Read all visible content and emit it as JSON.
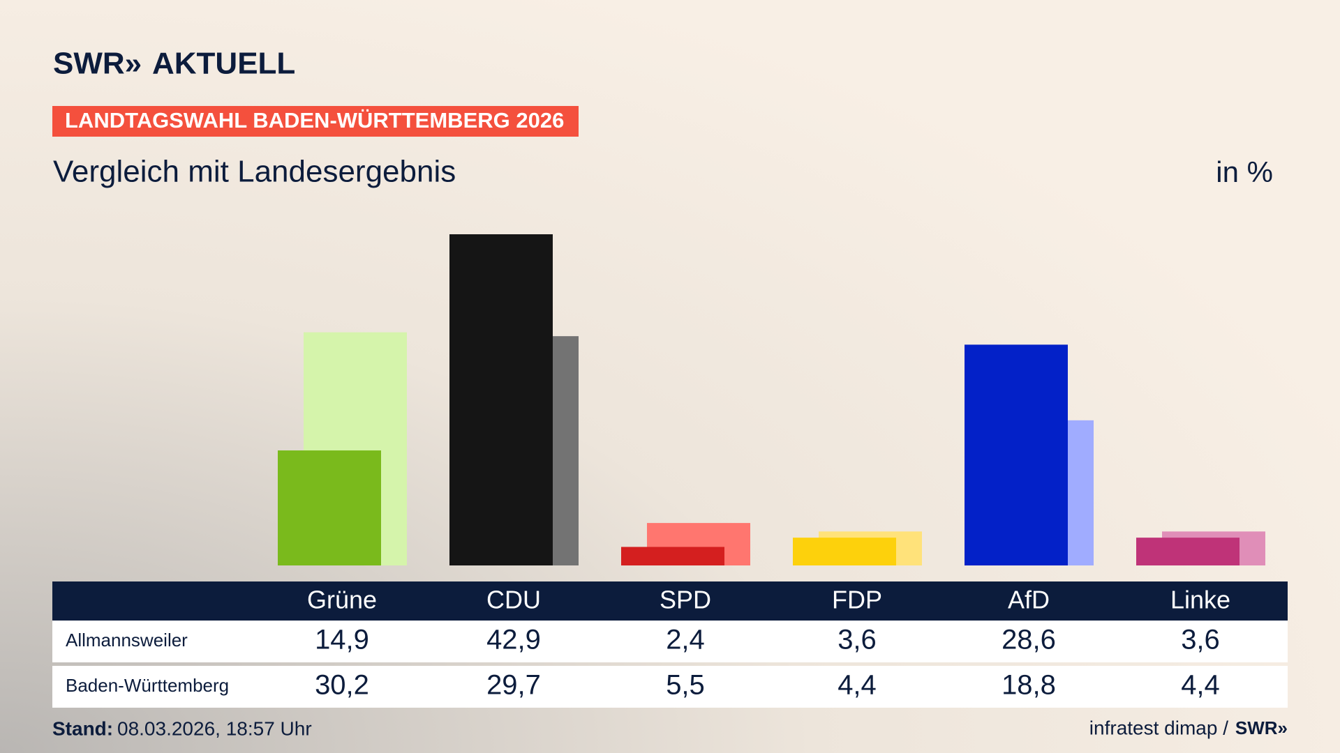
{
  "header": {
    "brand": "SWR»",
    "section": "AKTUELL",
    "banner": "LANDTAGSWAHL BADEN-WÜRTTEMBERG 2026"
  },
  "chart_data": {
    "type": "bar",
    "title": "Vergleich mit Landesergebnis",
    "unit": "in %",
    "categories": [
      "Grüne",
      "CDU",
      "SPD",
      "FDP",
      "AfD",
      "Linke"
    ],
    "series": [
      {
        "name": "Allmannsweiler",
        "colors": [
          "#7aba1c",
          "#151515",
          "#d41f1f",
          "#fdd10c",
          "#0321c8",
          "#bf3378"
        ],
        "values": [
          14.9,
          42.9,
          2.4,
          3.6,
          28.6,
          3.6
        ],
        "value_labels": [
          "14,9",
          "42,9",
          "2,4",
          "3,6",
          "28,6",
          "3,6"
        ]
      },
      {
        "name": "Baden-Württemberg",
        "colors": [
          "#d5f4ab",
          "#737373",
          "#ff766f",
          "#ffe27a",
          "#a0acff",
          "#e08eb8"
        ],
        "values": [
          30.2,
          29.7,
          5.5,
          4.4,
          18.8,
          4.4
        ],
        "value_labels": [
          "30,2",
          "29,7",
          "5,5",
          "4,4",
          "18,8",
          "4,4"
        ]
      }
    ]
  },
  "footer": {
    "stand_label": "Stand:",
    "stand": "08.03.2026, 18:57 Uhr",
    "source": "infratest dimap /",
    "brand": "SWR»"
  }
}
